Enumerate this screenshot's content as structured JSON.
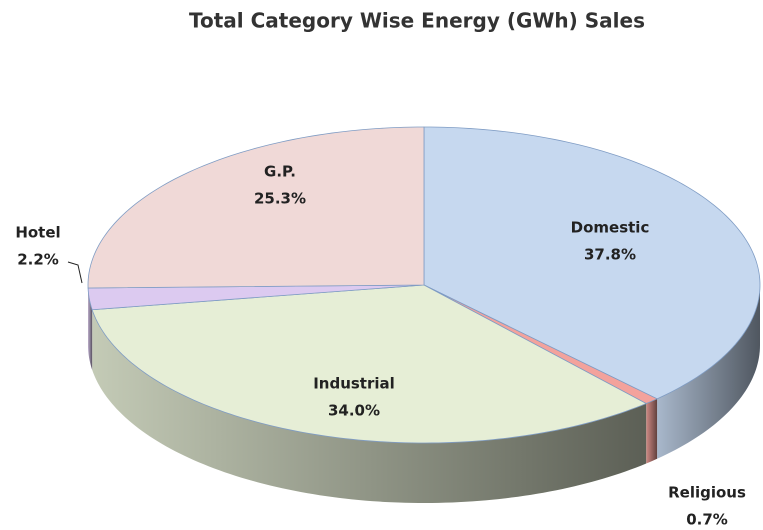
{
  "chart_data": {
    "type": "pie",
    "title": "Total Category Wise Energy (GWh) Sales",
    "categories": [
      "Domestic",
      "Religious",
      "Industrial",
      "Hotel",
      "G.P."
    ],
    "values": [
      37.8,
      0.7,
      34.0,
      2.2,
      25.3
    ],
    "value_labels": [
      "37.8%",
      "0.7%",
      "34.0%",
      "2.2%",
      "25.3%"
    ],
    "colors": [
      "#c6d8ef",
      "#f3a29c",
      "#e6eed6",
      "#dccaf0",
      "#f0d9d7"
    ]
  }
}
